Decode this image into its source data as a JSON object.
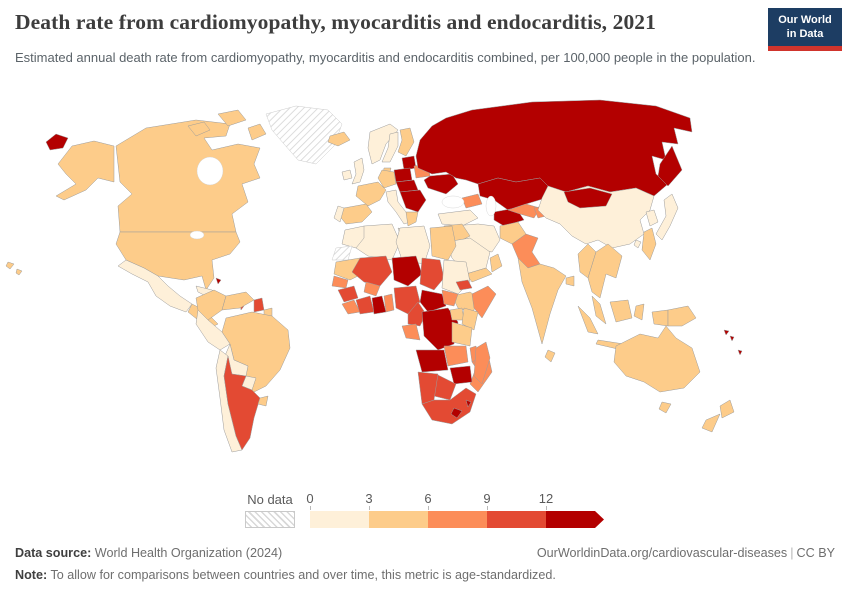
{
  "header": {
    "title": "Death rate from cardiomyopathy, myocarditis and endocarditis, 2021",
    "subtitle": "Estimated annual death rate from cardiomyopathy, myocarditis and endocarditis combined, per 100,000 people in the population.",
    "logo": {
      "line1": "Our World",
      "line2": "in Data",
      "bg_color": "#1d3d63",
      "accent_color": "#d0342c"
    }
  },
  "chart_data": {
    "type": "choropleth",
    "title": "Death rate from cardiomyopathy, myocarditis and endocarditis, 2021",
    "unit": "deaths per 100,000 people (age-standardized)",
    "year": "2021",
    "legend": {
      "no_data_label": "No data",
      "ticks": [
        "0",
        "3",
        "6",
        "9",
        "12"
      ],
      "buckets": [
        {
          "range": "0-3",
          "color": "#fef0d9"
        },
        {
          "range": "3-6",
          "color": "#fdcc8a"
        },
        {
          "range": "6-9",
          "color": "#fc8d59"
        },
        {
          "range": "9-12",
          "color": "#e34a33"
        },
        {
          "range": "12+",
          "color": "#b30000"
        }
      ],
      "no_data_pattern": "diagonal-hatch",
      "open_ended_arrow": true
    },
    "regions": {
      "united-states": "3-6",
      "canada": "3-6",
      "greenland": "no-data",
      "iceland": "3-6",
      "mexico": "0-3",
      "central-america": "3-6",
      "cuba": "0-3",
      "bahamas": "12+",
      "haiti-dominican-republic": "12+",
      "jamaica": "12+",
      "lesser-antilles": "9-12",
      "colombia": "3-6",
      "venezuela": "3-6",
      "guyana": "9-12",
      "suriname": "3-6",
      "brazil": "3-6",
      "peru": "0-3",
      "bolivia": "0-3",
      "paraguay": "0-3",
      "chile": "0-3",
      "argentina": "9-12",
      "uruguay": "3-6",
      "ireland": "0-3",
      "united-kingdom": "0-3",
      "norway": "0-3",
      "sweden": "0-3",
      "finland": "3-6",
      "denmark": "3-6",
      "baltic-states": "12+",
      "belarus": "6-9",
      "poland": "12+",
      "germany": "3-6",
      "france": "3-6",
      "spain": "3-6",
      "portugal": "0-3",
      "italy": "0-3",
      "central-europe": "12+",
      "balkans": "12+",
      "greece": "3-6",
      "ukraine": "12+",
      "russia": "12+",
      "kazakhstan": "12+",
      "caucasus": "6-9",
      "turkey": "0-3",
      "turkmenistan": "12+",
      "uzbekistan": "6-9",
      "kyrgyzstan-tajikistan": "6-9",
      "iran": "0-3",
      "afghanistan": "3-6",
      "pakistan": "6-9",
      "iraq-syria": "3-6",
      "saudi-arabia": "0-3",
      "yemen": "3-6",
      "oman": "3-6",
      "india": "3-6",
      "sri-lanka": "3-6",
      "bangladesh": "3-6",
      "china": "0-3",
      "mongolia": "12+",
      "south-korea": "0-3",
      "japan": "0-3",
      "taiwan": "0-3",
      "myanmar": "3-6",
      "thailand-laos-vietnam": "3-6",
      "malaysia": "3-6",
      "indonesia": "3-6",
      "philippines": "3-6",
      "papua-new-guinea": "3-6",
      "solomon-islands": "12+",
      "vanuatu-fiji": "12+",
      "australia": "3-6",
      "new-zealand": "3-6",
      "morocco": "0-3",
      "western-sahara": "no-data",
      "algeria": "0-3",
      "libya": "0-3",
      "egypt": "3-6",
      "mauritania": "3-6",
      "mali": "9-12",
      "burkina-faso": "6-9",
      "niger": "12+",
      "chad": "9-12",
      "sudan": "0-3",
      "eritrea": "9-12",
      "ethiopia": "3-6",
      "somalia": "6-9",
      "senegal": "6-9",
      "guinea": "9-12",
      "sierra-leone-liberia": "6-9",
      "ivory-coast": "9-12",
      "ghana": "12+",
      "togo-benin": "6-9",
      "nigeria": "9-12",
      "cameroon": "9-12",
      "central-african-republic": "12+",
      "south-sudan": "6-9",
      "gabon-congo": "6-9",
      "dr-congo": "12+",
      "uganda": "3-6",
      "kenya": "3-6",
      "tanzania": "3-6",
      "angola": "12+",
      "zambia": "6-9",
      "malawi": "6-9",
      "mozambique": "6-9",
      "zimbabwe": "12+",
      "botswana": "9-12",
      "namibia": "9-12",
      "south-africa": "9-12",
      "lesotho": "12+",
      "eswatini": "12+",
      "madagascar": "6-9"
    }
  },
  "footer": {
    "source_label": "Data source:",
    "source_text": " World Health Organization (2024)",
    "link": "OurWorldinData.org/cardiovascular-diseases",
    "separator": "|",
    "license": "CC BY",
    "note_label": "Note:",
    "note_text": " To allow for comparisons between countries and over time, this metric is age-standardized."
  }
}
